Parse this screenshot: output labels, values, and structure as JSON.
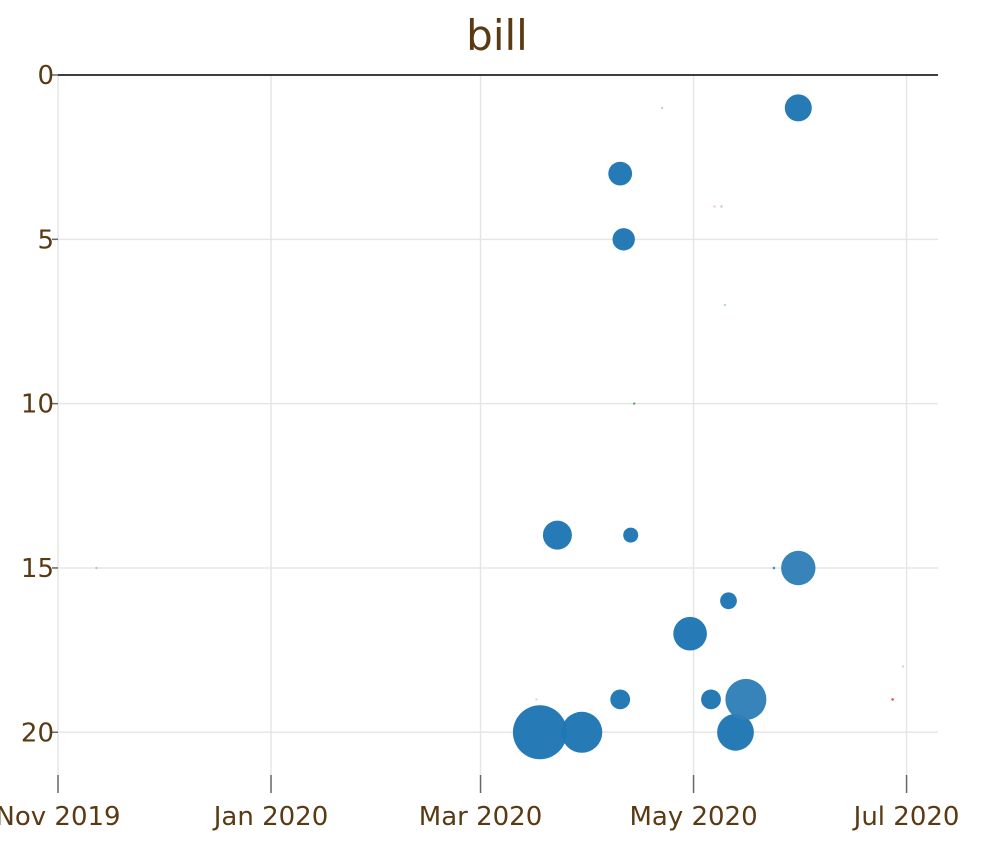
{
  "chart_data": {
    "type": "scatter",
    "title": "bill",
    "xlabel": "",
    "ylabel": "",
    "x_axis": {
      "type": "time",
      "range": [
        "2019-11-01",
        "2020-07-10"
      ],
      "ticks": [
        {
          "date": "2019-11-01",
          "label": "Nov 2019"
        },
        {
          "date": "2020-01-01",
          "label": "Jan 2020"
        },
        {
          "date": "2020-03-01",
          "label": "Mar 2020"
        },
        {
          "date": "2020-05-01",
          "label": "May 2020"
        },
        {
          "date": "2020-07-01",
          "label": "Jul 2020"
        }
      ]
    },
    "y_axis": {
      "range": [
        0,
        21.3
      ],
      "reversed": true,
      "ticks": [
        0,
        5,
        10,
        15,
        20
      ]
    },
    "grid": true,
    "points": [
      {
        "date": "2019-11-12",
        "y": 15,
        "size": 0.3,
        "color": "#9fbcd8"
      },
      {
        "date": "2020-03-18",
        "y": 20,
        "size": 26,
        "color": "#1f77b4"
      },
      {
        "date": "2020-03-17",
        "y": 19,
        "size": 0.3,
        "color": "#f4b6c2"
      },
      {
        "date": "2020-03-23",
        "y": 14,
        "size": 7.5,
        "color": "#1f77b4"
      },
      {
        "date": "2020-03-30",
        "y": 20,
        "size": 15,
        "color": "#1f77b4"
      },
      {
        "date": "2020-04-10",
        "y": 3,
        "size": 5,
        "color": "#1f77b4"
      },
      {
        "date": "2020-04-11",
        "y": 5,
        "size": 4.5,
        "color": "#1f77b4"
      },
      {
        "date": "2020-04-10",
        "y": 19,
        "size": 3.5,
        "color": "#1f77b4"
      },
      {
        "date": "2020-04-13",
        "y": 14,
        "size": 2,
        "color": "#1f77b4"
      },
      {
        "date": "2020-04-14",
        "y": 10,
        "size": 1,
        "color": "#2ca02c"
      },
      {
        "date": "2020-04-22",
        "y": 1,
        "size": 1,
        "color": "#9fd89f"
      },
      {
        "date": "2020-04-30",
        "y": 17,
        "size": 10,
        "color": "#1f77b4"
      },
      {
        "date": "2020-05-06",
        "y": 19,
        "size": 3.5,
        "color": "#1f77b4"
      },
      {
        "date": "2020-05-07",
        "y": 4,
        "size": 0.5,
        "color": "#f4b6c2"
      },
      {
        "date": "2020-05-09",
        "y": 4,
        "size": 0.5,
        "color": "#9fbcd8"
      },
      {
        "date": "2020-05-10",
        "y": 7,
        "size": 0.5,
        "color": "#9fd89f"
      },
      {
        "date": "2020-05-11",
        "y": 16,
        "size": 2.5,
        "color": "#1f77b4"
      },
      {
        "date": "2020-05-13",
        "y": 20,
        "size": 12,
        "color": "#1f77b4"
      },
      {
        "date": "2020-05-16",
        "y": 19,
        "size": 15,
        "color": "#2f80b8"
      },
      {
        "date": "2020-05-24",
        "y": 15,
        "size": 1.5,
        "color": "#1f77b4"
      },
      {
        "date": "2020-05-31",
        "y": 15,
        "size": 10.5,
        "color": "#2f80b8"
      },
      {
        "date": "2020-05-31",
        "y": 1,
        "size": 6.5,
        "color": "#1f77b4"
      },
      {
        "date": "2020-06-27",
        "y": 19,
        "size": 1.5,
        "color": "#d62728"
      },
      {
        "date": "2020-06-30",
        "y": 18,
        "size": 0.5,
        "color": "#f4b6c2"
      }
    ]
  }
}
